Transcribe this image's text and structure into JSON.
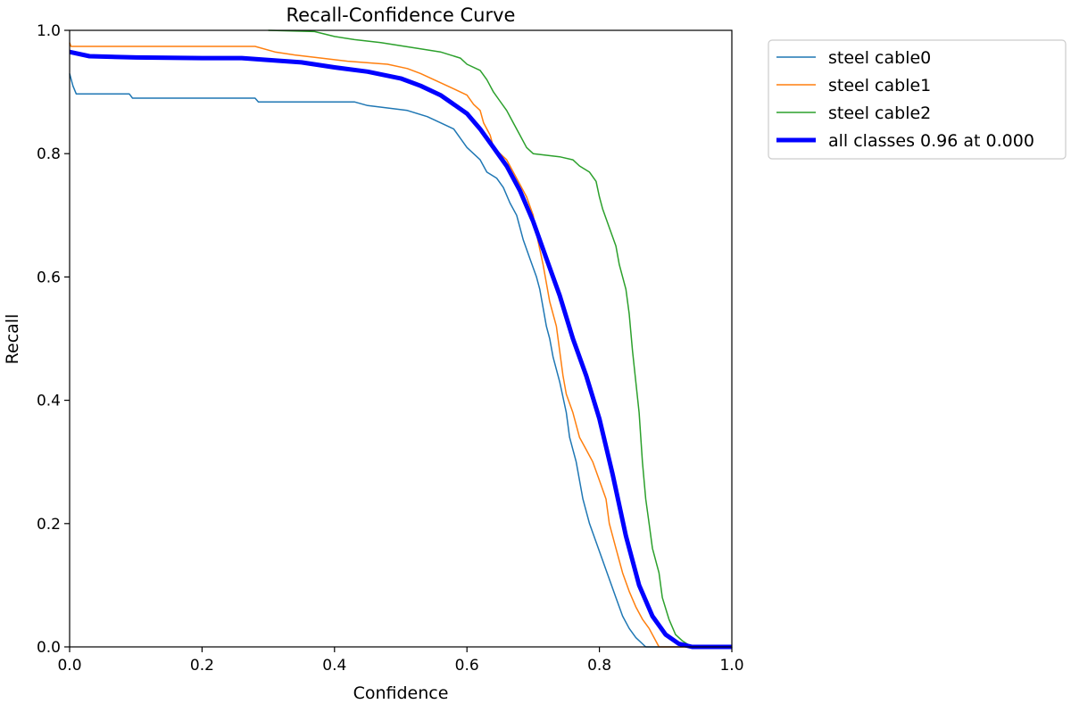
{
  "chart_data": {
    "type": "line",
    "title": "Recall-Confidence Curve",
    "xlabel": "Confidence",
    "ylabel": "Recall",
    "xlim": [
      0,
      1
    ],
    "ylim": [
      0,
      1
    ],
    "xticks": [
      "0.0",
      "0.2",
      "0.4",
      "0.6",
      "0.8",
      "1.0"
    ],
    "yticks": [
      "0.0",
      "0.2",
      "0.4",
      "0.6",
      "0.8",
      "1.0"
    ],
    "legend_position": "outside-top-right",
    "series": [
      {
        "name": "steel cable0",
        "color": "#1f77b4",
        "points": [
          [
            0.0,
            0.93
          ],
          [
            0.005,
            0.91
          ],
          [
            0.01,
            0.897
          ],
          [
            0.09,
            0.897
          ],
          [
            0.095,
            0.89
          ],
          [
            0.28,
            0.89
          ],
          [
            0.285,
            0.884
          ],
          [
            0.43,
            0.884
          ],
          [
            0.45,
            0.878
          ],
          [
            0.51,
            0.87
          ],
          [
            0.54,
            0.86
          ],
          [
            0.56,
            0.85
          ],
          [
            0.58,
            0.84
          ],
          [
            0.59,
            0.825
          ],
          [
            0.6,
            0.81
          ],
          [
            0.62,
            0.79
          ],
          [
            0.63,
            0.77
          ],
          [
            0.645,
            0.76
          ],
          [
            0.655,
            0.745
          ],
          [
            0.665,
            0.72
          ],
          [
            0.675,
            0.7
          ],
          [
            0.685,
            0.66
          ],
          [
            0.695,
            0.63
          ],
          [
            0.705,
            0.6
          ],
          [
            0.71,
            0.58
          ],
          [
            0.715,
            0.55
          ],
          [
            0.72,
            0.52
          ],
          [
            0.725,
            0.5
          ],
          [
            0.73,
            0.47
          ],
          [
            0.74,
            0.43
          ],
          [
            0.75,
            0.38
          ],
          [
            0.755,
            0.34
          ],
          [
            0.765,
            0.3
          ],
          [
            0.775,
            0.24
          ],
          [
            0.785,
            0.2
          ],
          [
            0.795,
            0.17
          ],
          [
            0.805,
            0.14
          ],
          [
            0.815,
            0.11
          ],
          [
            0.825,
            0.08
          ],
          [
            0.835,
            0.05
          ],
          [
            0.845,
            0.03
          ],
          [
            0.855,
            0.015
          ],
          [
            0.865,
            0.005
          ],
          [
            0.87,
            0.0
          ],
          [
            1.0,
            0.0
          ]
        ]
      },
      {
        "name": "steel cable1",
        "color": "#ff7f0e",
        "points": [
          [
            0.0,
            0.98
          ],
          [
            0.002,
            0.974
          ],
          [
            0.28,
            0.974
          ],
          [
            0.31,
            0.965
          ],
          [
            0.34,
            0.96
          ],
          [
            0.38,
            0.955
          ],
          [
            0.42,
            0.95
          ],
          [
            0.48,
            0.945
          ],
          [
            0.51,
            0.938
          ],
          [
            0.53,
            0.93
          ],
          [
            0.56,
            0.915
          ],
          [
            0.58,
            0.905
          ],
          [
            0.6,
            0.895
          ],
          [
            0.61,
            0.88
          ],
          [
            0.62,
            0.87
          ],
          [
            0.625,
            0.85
          ],
          [
            0.635,
            0.83
          ],
          [
            0.64,
            0.81
          ],
          [
            0.65,
            0.8
          ],
          [
            0.66,
            0.79
          ],
          [
            0.67,
            0.77
          ],
          [
            0.68,
            0.75
          ],
          [
            0.69,
            0.73
          ],
          [
            0.7,
            0.7
          ],
          [
            0.705,
            0.67
          ],
          [
            0.715,
            0.62
          ],
          [
            0.72,
            0.59
          ],
          [
            0.725,
            0.56
          ],
          [
            0.735,
            0.52
          ],
          [
            0.74,
            0.48
          ],
          [
            0.745,
            0.44
          ],
          [
            0.75,
            0.41
          ],
          [
            0.76,
            0.38
          ],
          [
            0.77,
            0.34
          ],
          [
            0.78,
            0.32
          ],
          [
            0.79,
            0.3
          ],
          [
            0.8,
            0.27
          ],
          [
            0.81,
            0.24
          ],
          [
            0.815,
            0.2
          ],
          [
            0.825,
            0.16
          ],
          [
            0.835,
            0.12
          ],
          [
            0.845,
            0.09
          ],
          [
            0.855,
            0.065
          ],
          [
            0.865,
            0.045
          ],
          [
            0.875,
            0.03
          ],
          [
            0.885,
            0.01
          ],
          [
            0.89,
            0.0
          ],
          [
            1.0,
            0.0
          ]
        ]
      },
      {
        "name": "steel cable2",
        "color": "#2ca02c",
        "points": [
          [
            0.3,
            1.0
          ],
          [
            0.37,
            0.998
          ],
          [
            0.4,
            0.99
          ],
          [
            0.43,
            0.985
          ],
          [
            0.47,
            0.98
          ],
          [
            0.5,
            0.975
          ],
          [
            0.53,
            0.97
          ],
          [
            0.56,
            0.965
          ],
          [
            0.59,
            0.955
          ],
          [
            0.6,
            0.945
          ],
          [
            0.62,
            0.935
          ],
          [
            0.63,
            0.92
          ],
          [
            0.64,
            0.9
          ],
          [
            0.65,
            0.885
          ],
          [
            0.66,
            0.87
          ],
          [
            0.67,
            0.85
          ],
          [
            0.68,
            0.83
          ],
          [
            0.69,
            0.81
          ],
          [
            0.7,
            0.8
          ],
          [
            0.74,
            0.795
          ],
          [
            0.76,
            0.79
          ],
          [
            0.77,
            0.78
          ],
          [
            0.785,
            0.77
          ],
          [
            0.795,
            0.755
          ],
          [
            0.8,
            0.73
          ],
          [
            0.805,
            0.71
          ],
          [
            0.815,
            0.68
          ],
          [
            0.825,
            0.65
          ],
          [
            0.83,
            0.62
          ],
          [
            0.84,
            0.58
          ],
          [
            0.845,
            0.54
          ],
          [
            0.85,
            0.48
          ],
          [
            0.855,
            0.43
          ],
          [
            0.86,
            0.38
          ],
          [
            0.865,
            0.3
          ],
          [
            0.87,
            0.24
          ],
          [
            0.875,
            0.2
          ],
          [
            0.88,
            0.16
          ],
          [
            0.89,
            0.12
          ],
          [
            0.895,
            0.08
          ],
          [
            0.905,
            0.045
          ],
          [
            0.915,
            0.02
          ],
          [
            0.925,
            0.01
          ],
          [
            0.935,
            0.003
          ],
          [
            0.945,
            0.0
          ],
          [
            1.0,
            0.0
          ]
        ]
      },
      {
        "name": "all classes 0.96 at 0.000",
        "color": "#0000ff",
        "bold": true,
        "points": [
          [
            0.0,
            0.965
          ],
          [
            0.03,
            0.958
          ],
          [
            0.1,
            0.956
          ],
          [
            0.2,
            0.955
          ],
          [
            0.26,
            0.955
          ],
          [
            0.3,
            0.952
          ],
          [
            0.35,
            0.948
          ],
          [
            0.4,
            0.94
          ],
          [
            0.45,
            0.933
          ],
          [
            0.5,
            0.922
          ],
          [
            0.53,
            0.91
          ],
          [
            0.56,
            0.895
          ],
          [
            0.58,
            0.88
          ],
          [
            0.6,
            0.865
          ],
          [
            0.62,
            0.84
          ],
          [
            0.64,
            0.81
          ],
          [
            0.66,
            0.78
          ],
          [
            0.68,
            0.74
          ],
          [
            0.7,
            0.69
          ],
          [
            0.72,
            0.63
          ],
          [
            0.74,
            0.57
          ],
          [
            0.76,
            0.5
          ],
          [
            0.78,
            0.44
          ],
          [
            0.8,
            0.37
          ],
          [
            0.82,
            0.28
          ],
          [
            0.84,
            0.18
          ],
          [
            0.86,
            0.1
          ],
          [
            0.88,
            0.05
          ],
          [
            0.9,
            0.02
          ],
          [
            0.92,
            0.005
          ],
          [
            0.94,
            0.0
          ],
          [
            1.0,
            0.0
          ]
        ]
      }
    ]
  }
}
